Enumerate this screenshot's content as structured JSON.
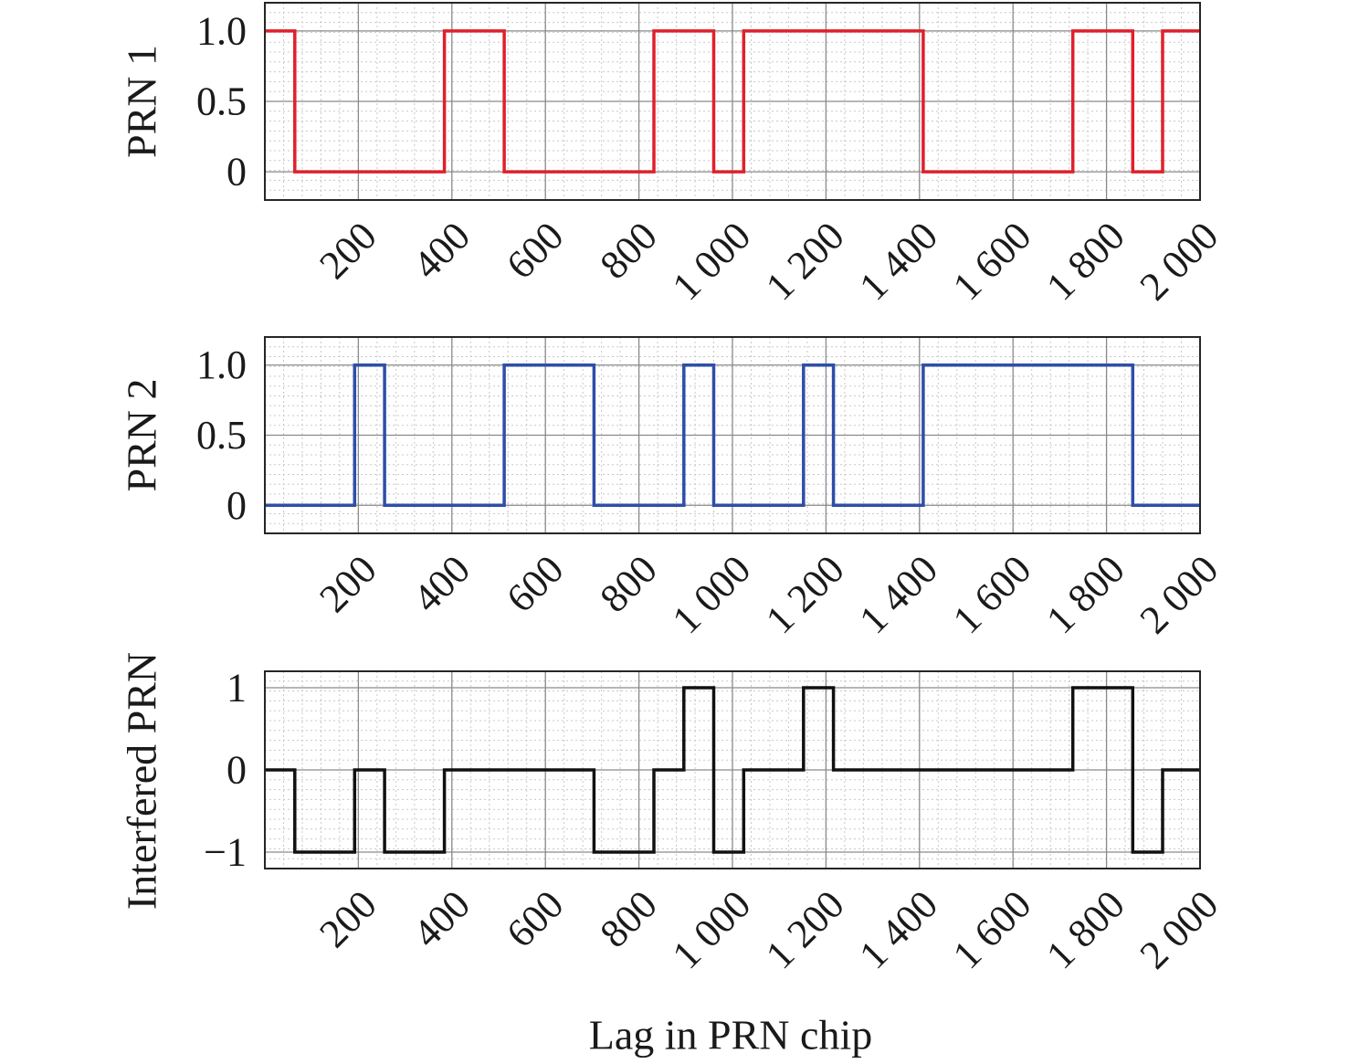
{
  "chart_data": [
    {
      "type": "line",
      "step": true,
      "ylabel": "PRN 1",
      "xlabel": "",
      "xlim": [
        0,
        2000
      ],
      "ylim": [
        -0.2,
        1.2
      ],
      "xticks": [
        200,
        400,
        600,
        800,
        1000,
        1200,
        1400,
        1600,
        1800,
        2000
      ],
      "xtick_labels": [
        "200",
        "400",
        "600",
        "800",
        "1 000",
        "1 200",
        "1 400",
        "1 600",
        "1 800",
        "2 000"
      ],
      "yticks": [
        0,
        0.5,
        1.0
      ],
      "ytick_labels": [
        "0",
        "0.5",
        "1.0"
      ],
      "grid": true,
      "color": "#e0202c",
      "series": [
        {
          "name": "PRN 1",
          "x": [
            0,
            64,
            64,
            384,
            384,
            512,
            512,
            832,
            832,
            960,
            960,
            1024,
            1024,
            1408,
            1408,
            1728,
            1728,
            1856,
            1856,
            1920,
            1920,
            2000
          ],
          "y": [
            1,
            1,
            0,
            0,
            1,
            1,
            0,
            0,
            1,
            1,
            0,
            0,
            1,
            1,
            0,
            0,
            1,
            1,
            0,
            0,
            1,
            1
          ]
        }
      ]
    },
    {
      "type": "line",
      "step": true,
      "ylabel": "PRN 2",
      "xlabel": "",
      "xlim": [
        0,
        2000
      ],
      "ylim": [
        -0.2,
        1.2
      ],
      "xticks": [
        200,
        400,
        600,
        800,
        1000,
        1200,
        1400,
        1600,
        1800,
        2000
      ],
      "xtick_labels": [
        "200",
        "400",
        "600",
        "800",
        "1 000",
        "1 200",
        "1 400",
        "1 600",
        "1 800",
        "2 000"
      ],
      "yticks": [
        0,
        0.5,
        1.0
      ],
      "ytick_labels": [
        "0",
        "0.5",
        "1.0"
      ],
      "grid": true,
      "color": "#2e4ea8",
      "series": [
        {
          "name": "PRN 2",
          "x": [
            0,
            192,
            192,
            256,
            256,
            512,
            512,
            704,
            704,
            896,
            896,
            960,
            960,
            1152,
            1152,
            1216,
            1216,
            1408,
            1408,
            1856,
            1856,
            2000
          ],
          "y": [
            0,
            0,
            1,
            1,
            0,
            0,
            1,
            1,
            0,
            0,
            1,
            1,
            0,
            0,
            1,
            1,
            0,
            0,
            1,
            1,
            0,
            0
          ]
        }
      ]
    },
    {
      "type": "line",
      "step": true,
      "ylabel": "Interfered PRN",
      "xlabel": "Lag in PRN chip",
      "xlim": [
        0,
        2000
      ],
      "ylim": [
        -1.2,
        1.2
      ],
      "xticks": [
        200,
        400,
        600,
        800,
        1000,
        1200,
        1400,
        1600,
        1800,
        2000
      ],
      "xtick_labels": [
        "200",
        "400",
        "600",
        "800",
        "1 000",
        "1 200",
        "1 400",
        "1 600",
        "1 800",
        "2 000"
      ],
      "yticks": [
        -1,
        0,
        1
      ],
      "ytick_labels": [
        "−1",
        "0",
        "1"
      ],
      "grid": true,
      "color": "#111111",
      "series": [
        {
          "name": "Interfered PRN",
          "x": [
            0,
            64,
            64,
            192,
            192,
            256,
            256,
            384,
            384,
            704,
            704,
            832,
            832,
            896,
            896,
            960,
            960,
            1024,
            1024,
            1152,
            1152,
            1216,
            1216,
            1728,
            1728,
            1856,
            1856,
            1920,
            1920,
            2000
          ],
          "y": [
            0,
            0,
            -1,
            -1,
            0,
            0,
            -1,
            -1,
            0,
            0,
            -1,
            -1,
            0,
            0,
            1,
            1,
            -1,
            -1,
            0,
            0,
            1,
            1,
            0,
            0,
            1,
            1,
            -1,
            -1,
            0,
            0
          ]
        }
      ]
    }
  ]
}
